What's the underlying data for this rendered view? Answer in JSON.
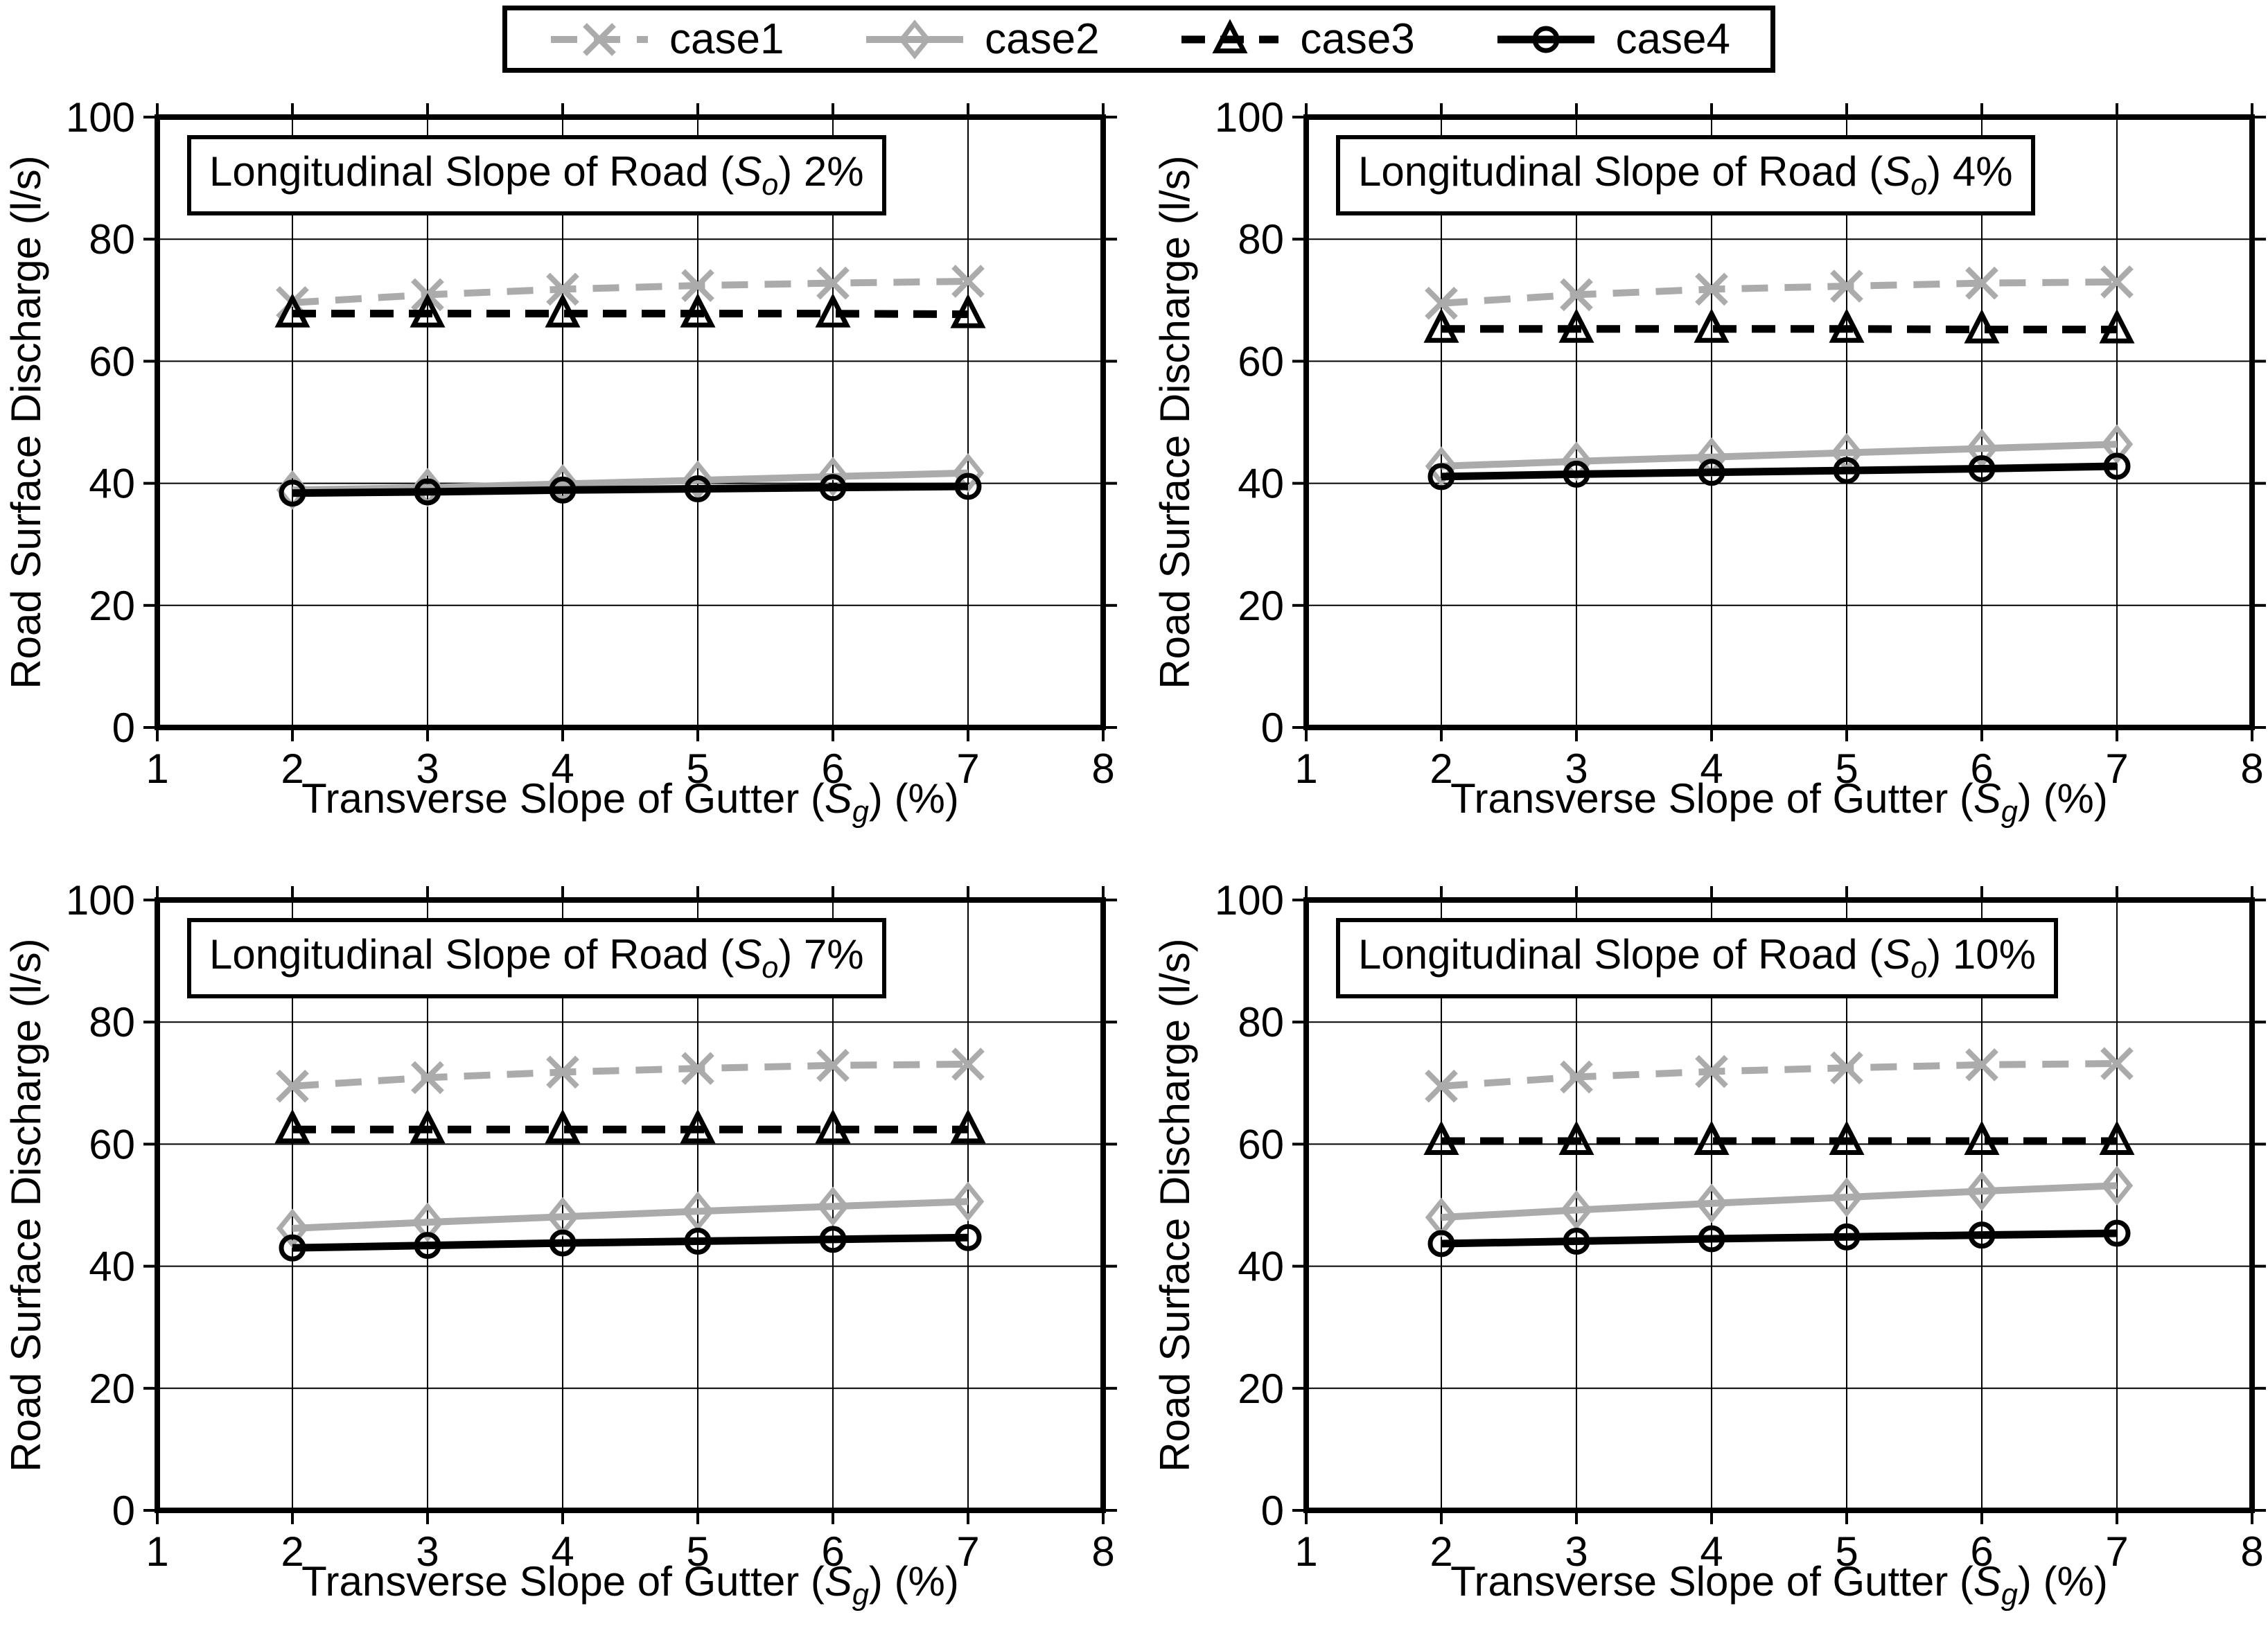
{
  "figure": {
    "background": "#ffffff",
    "y_axis_label": "Road Surface Discharge (l/s)",
    "x_axis_label": "Transverse Slope of Gutter (Sg) (%)",
    "x_axis_label_prefix": "Transverse Slope of Gutter (",
    "x_axis_label_symbol": "S",
    "x_axis_label_sub": "g",
    "x_axis_label_suffix": ") (%)"
  },
  "legend": {
    "position": "top-center-outside",
    "items": [
      {
        "label": "case1",
        "series": "case1"
      },
      {
        "label": "case2",
        "series": "case2"
      },
      {
        "label": "case3",
        "series": "case3"
      },
      {
        "label": "case4",
        "series": "case4"
      }
    ]
  },
  "series_styles": {
    "case1": {
      "color": "#ababab",
      "dash": "38 24",
      "line_width": 10,
      "marker": "x",
      "marker_size": 21,
      "marker_stroke": 8
    },
    "case2": {
      "color": "#ababab",
      "dash": "",
      "line_width": 10,
      "marker": "diamond",
      "marker_size": 22,
      "marker_stroke": 7
    },
    "case3": {
      "color": "#000000",
      "dash": "34 22",
      "line_width": 11,
      "marker": "triangle",
      "marker_size": 22,
      "marker_stroke": 7
    },
    "case4": {
      "color": "#000000",
      "dash": "",
      "line_width": 11,
      "marker": "circle",
      "marker_size": 16,
      "marker_stroke": 7
    }
  },
  "chart_data": [
    {
      "type": "line",
      "title": "Longitudinal Slope of Road (So) 2%",
      "title_prefix": "Longitudinal Slope of Road (",
      "title_symbol": "S",
      "title_sub": "o",
      "title_suffix": ") 2%",
      "xlabel": "Transverse Slope of Gutter (Sg) (%)",
      "ylabel": "Road Surface Discharge (l/s)",
      "x": [
        2,
        3,
        4,
        5,
        6,
        7
      ],
      "xlim": [
        1,
        8
      ],
      "ylim": [
        0,
        100
      ],
      "xticks": [
        1,
        2,
        3,
        4,
        5,
        6,
        7,
        8
      ],
      "yticks": [
        0,
        20,
        40,
        60,
        80,
        100
      ],
      "grid": true,
      "series": [
        {
          "name": "case1",
          "values": [
            69.6,
            70.9,
            71.8,
            72.4,
            72.8,
            73.1
          ]
        },
        {
          "name": "case2",
          "values": [
            38.9,
            39.3,
            39.9,
            40.5,
            41.1,
            41.7
          ]
        },
        {
          "name": "case3",
          "values": [
            67.8,
            67.8,
            67.8,
            67.8,
            67.8,
            67.7
          ]
        },
        {
          "name": "case4",
          "values": [
            38.4,
            38.6,
            38.9,
            39.1,
            39.3,
            39.5
          ]
        }
      ]
    },
    {
      "type": "line",
      "title": "Longitudinal Slope of Road (So) 4%",
      "title_prefix": "Longitudinal Slope of Road (",
      "title_symbol": "S",
      "title_sub": "o",
      "title_suffix": ") 4%",
      "xlabel": "Transverse Slope of Gutter (Sg) (%)",
      "ylabel": "Road Surface Discharge (l/s)",
      "x": [
        2,
        3,
        4,
        5,
        6,
        7
      ],
      "xlim": [
        1,
        8
      ],
      "ylim": [
        0,
        100
      ],
      "xticks": [
        1,
        2,
        3,
        4,
        5,
        6,
        7,
        8
      ],
      "yticks": [
        0,
        20,
        40,
        60,
        80,
        100
      ],
      "grid": true,
      "series": [
        {
          "name": "case1",
          "values": [
            69.5,
            70.9,
            71.8,
            72.3,
            72.8,
            73.0
          ]
        },
        {
          "name": "case2",
          "values": [
            42.8,
            43.6,
            44.3,
            45.0,
            45.7,
            46.4
          ]
        },
        {
          "name": "case3",
          "values": [
            65.3,
            65.3,
            65.3,
            65.3,
            65.2,
            65.2
          ]
        },
        {
          "name": "case4",
          "values": [
            41.1,
            41.5,
            41.8,
            42.1,
            42.4,
            42.8
          ]
        }
      ]
    },
    {
      "type": "line",
      "title": "Longitudinal Slope of Road (So) 7%",
      "title_prefix": "Longitudinal Slope of Road (",
      "title_symbol": "S",
      "title_sub": "o",
      "title_suffix": ") 7%",
      "xlabel": "Transverse Slope of Gutter (Sg) (%)",
      "ylabel": "Road Surface Discharge (l/s)",
      "x": [
        2,
        3,
        4,
        5,
        6,
        7
      ],
      "xlim": [
        1,
        8
      ],
      "ylim": [
        0,
        100
      ],
      "xticks": [
        1,
        2,
        3,
        4,
        5,
        6,
        7,
        8
      ],
      "yticks": [
        0,
        20,
        40,
        60,
        80,
        100
      ],
      "grid": true,
      "series": [
        {
          "name": "case1",
          "values": [
            69.5,
            70.9,
            71.8,
            72.4,
            72.9,
            73.1
          ]
        },
        {
          "name": "case2",
          "values": [
            46.2,
            47.2,
            48.1,
            49.0,
            49.8,
            50.6
          ]
        },
        {
          "name": "case3",
          "values": [
            62.4,
            62.4,
            62.4,
            62.4,
            62.4,
            62.4
          ]
        },
        {
          "name": "case4",
          "values": [
            43.0,
            43.4,
            43.8,
            44.1,
            44.4,
            44.7
          ]
        }
      ]
    },
    {
      "type": "line",
      "title": "Longitudinal Slope of Road (So) 10%",
      "title_prefix": "Longitudinal Slope of Road (",
      "title_symbol": "S",
      "title_sub": "o",
      "title_suffix": ") 10%",
      "xlabel": "Transverse Slope of Gutter (Sg) (%)",
      "ylabel": "Road Surface Discharge (l/s)",
      "x": [
        2,
        3,
        4,
        5,
        6,
        7
      ],
      "xlim": [
        1,
        8
      ],
      "ylim": [
        0,
        100
      ],
      "xticks": [
        1,
        2,
        3,
        4,
        5,
        6,
        7,
        8
      ],
      "yticks": [
        0,
        20,
        40,
        60,
        80,
        100
      ],
      "grid": true,
      "series": [
        {
          "name": "case1",
          "values": [
            69.5,
            71.0,
            71.9,
            72.5,
            73.0,
            73.2
          ]
        },
        {
          "name": "case2",
          "values": [
            48.0,
            49.2,
            50.3,
            51.3,
            52.3,
            53.2
          ]
        },
        {
          "name": "case3",
          "values": [
            60.5,
            60.5,
            60.5,
            60.5,
            60.5,
            60.5
          ]
        },
        {
          "name": "case4",
          "values": [
            43.7,
            44.1,
            44.5,
            44.8,
            45.1,
            45.4
          ]
        }
      ]
    }
  ]
}
